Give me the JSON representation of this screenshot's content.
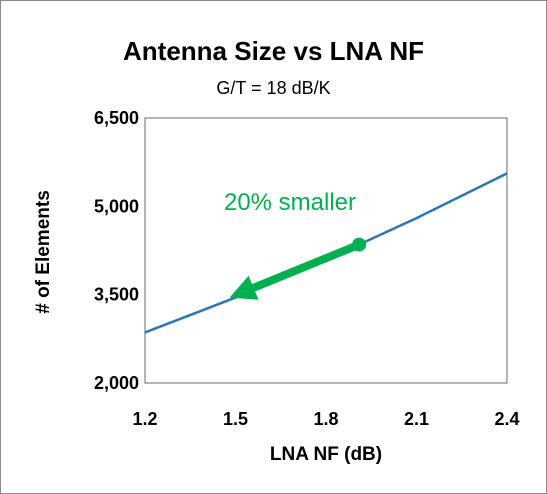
{
  "chart_data": {
    "type": "line",
    "title": "Antenna Size vs LNA NF",
    "subtitle": "G/T = 18 dB/K",
    "xlabel": "LNA NF (dB)",
    "ylabel": "# of Elements",
    "xlim": [
      1.2,
      2.4
    ],
    "ylim": [
      2000,
      6500
    ],
    "xticks": [
      "1.2",
      "1.5",
      "1.8",
      "2.1",
      "2.4"
    ],
    "yticks": [
      "2,000",
      "3,500",
      "5,000",
      "6,500"
    ],
    "grid": false,
    "series": [
      {
        "x": [
          1.2,
          1.5,
          1.8,
          2.1,
          2.4
        ],
        "y": [
          2860,
          3450,
          4090,
          4800,
          5560
        ],
        "color": "#2e75b6"
      }
    ],
    "annotation": {
      "text": "20% smaller",
      "color": "#00b050",
      "arrow_from": {
        "x": 1.91,
        "y": 4350
      },
      "arrow_to": {
        "x": 1.48,
        "y": 3450
      }
    }
  }
}
